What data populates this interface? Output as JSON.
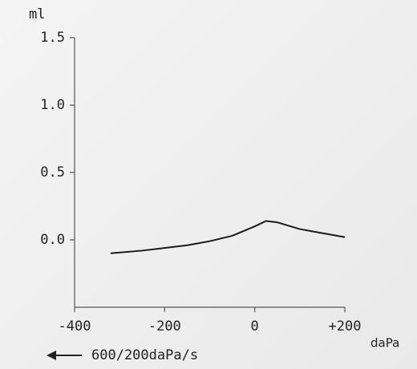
{
  "chart_data": {
    "type": "line",
    "y_label": "ml",
    "x_label": "daPa",
    "annotation": "600/200daPa/s",
    "x": [
      -320,
      -250,
      -200,
      -150,
      -100,
      -50,
      0,
      25,
      50,
      100,
      150,
      200
    ],
    "series": [
      {
        "color": "#1a1a1a",
        "values": [
          -0.1,
          -0.08,
          -0.06,
          -0.04,
          -0.01,
          0.03,
          0.1,
          0.14,
          0.13,
          0.08,
          0.05,
          0.02
        ]
      }
    ],
    "xlim": [
      -400,
      200
    ],
    "xticks": [
      -400,
      -200,
      0,
      {
        "value": 200,
        "label": "+200"
      }
    ],
    "ylim": [
      -0.5,
      1.5
    ],
    "yticks": [
      {
        "value": 0,
        "label": "0.0"
      },
      0.5,
      {
        "value": 1,
        "label": "1.0"
      },
      1.5
    ]
  }
}
